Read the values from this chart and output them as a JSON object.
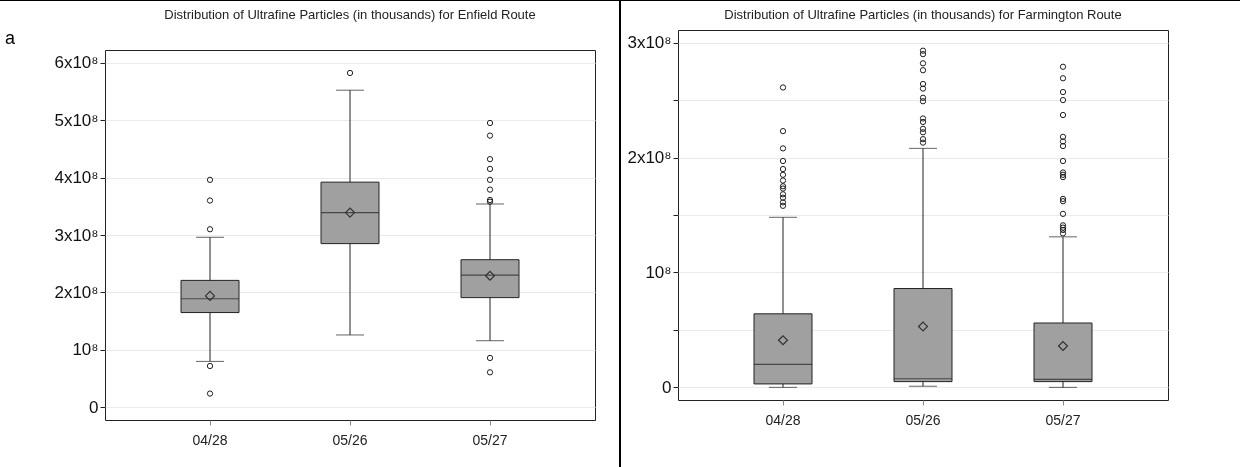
{
  "chart_data": [
    {
      "type": "box",
      "title": "Distribution of Ultrafine Particles (in thousands) for Enfield Route",
      "annotations": [
        "a"
      ],
      "categories": [
        "04/28",
        "05/26",
        "05/27"
      ],
      "series": [
        {
          "color": "#a0a0a0",
          "boxes": [
            {
              "low": 80000000,
              "q1": 165000000,
              "median": 189000000,
              "q3": 221000000,
              "high": 296000000,
              "mean": 194000000,
              "outliers": [
                396000000,
                360000000,
                310000000,
                72000000,
                24000000
              ]
            },
            {
              "low": 126000000,
              "q1": 285000000,
              "median": 339000000,
              "q3": 392000000,
              "high": 552000000,
              "mean": 339000000,
              "outliers": [
                582000000
              ]
            },
            {
              "low": 116000000,
              "q1": 191000000,
              "median": 230000000,
              "q3": 257000000,
              "high": 354000000,
              "mean": 229000000,
              "outliers": [
                495000000,
                473000000,
                432000000,
                415000000,
                396000000,
                379000000,
                361000000,
                358000000,
                86000000,
                61000000
              ]
            }
          ]
        }
      ],
      "ylim": [
        -22000000,
        622000000
      ],
      "yticks": [
        0,
        {
          "value": 100000000,
          "label": "10⁸"
        },
        {
          "value": 200000000,
          "label": "2x10⁸"
        },
        {
          "value": 300000000,
          "label": "3x10⁸"
        },
        {
          "value": 400000000,
          "label": "4x10⁸"
        },
        {
          "value": 500000000,
          "label": "5x10⁸"
        },
        {
          "value": 600000000,
          "label": "6x10⁸"
        }
      ],
      "grid": "y"
    },
    {
      "type": "box",
      "title": "Distribution of Ultrafine Particles (in thousands) for Farmington Route",
      "categories": [
        "04/28",
        "05/26",
        "05/27"
      ],
      "series": [
        {
          "color": "#a0a0a0",
          "boxes": [
            {
              "low": 0,
              "q1": 3000000,
              "median": 20000000,
              "q3": 64000000,
              "high": 148000000,
              "mean": 41000000,
              "outliers": [
                261000000,
                223000000,
                208000000,
                197000000,
                190000000,
                185000000,
                180000000,
                175000000,
                173000000,
                168000000,
                165000000,
                161000000,
                158000000
              ]
            },
            {
              "low": 1000000,
              "q1": 5000000,
              "median": 7500000,
              "q3": 86000000,
              "high": 208000000,
              "mean": 53000000,
              "outliers": [
                293000000,
                290000000,
                282000000,
                276000000,
                264000000,
                260000000,
                252000000,
                249000000,
                234000000,
                231000000,
                225000000,
                222000000,
                216000000,
                213000000
              ]
            },
            {
              "low": 0,
              "q1": 5000000,
              "median": 7000000,
              "q3": 56000000,
              "high": 131000000,
              "mean": 36000000,
              "outliers": [
                279000000,
                269000000,
                257000000,
                250000000,
                237000000,
                218000000,
                214000000,
                210000000,
                197000000,
                187000000,
                185000000,
                183000000,
                164000000,
                162000000,
                151000000,
                141000000,
                139000000,
                137000000,
                134000000
              ]
            }
          ]
        }
      ],
      "ylim": [
        -11000000,
        311000000
      ],
      "yticks": [
        0,
        {
          "value": 50000000,
          "label": null
        },
        {
          "value": 100000000,
          "label": "10⁸"
        },
        {
          "value": 150000000,
          "label": null
        },
        {
          "value": 200000000,
          "label": "2x10⁸"
        },
        {
          "value": 250000000,
          "label": null
        },
        {
          "value": 300000000,
          "label": "3x10⁸"
        }
      ],
      "grid": "y"
    }
  ]
}
